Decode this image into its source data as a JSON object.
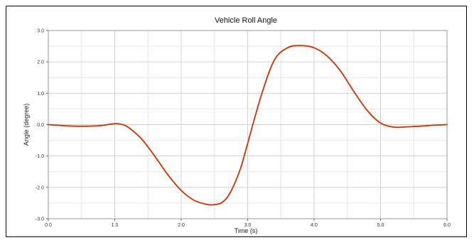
{
  "chart_data": {
    "type": "line",
    "title": "Vehicle Roll Angle",
    "xlabel": "Time (s)",
    "ylabel": "Angle (degree)",
    "xlim": [
      0.0,
      6.0
    ],
    "ylim": [
      -3.0,
      3.0
    ],
    "x_ticks": [
      "0.0",
      "1.0",
      "2.0",
      "3.0",
      "4.0",
      "5.0",
      "6.0"
    ],
    "y_ticks": [
      "-3.0",
      "-2.0",
      "-1.0",
      "0.0",
      "1.0",
      "2.0",
      "3.0"
    ],
    "grid": true,
    "series": [
      {
        "color": "#cc3300",
        "x": [
          0.0,
          0.2,
          0.4,
          0.6,
          0.8,
          1.0,
          1.1,
          1.2,
          1.4,
          1.6,
          1.8,
          2.0,
          2.2,
          2.4,
          2.5,
          2.6,
          2.7,
          2.8,
          2.9,
          3.0,
          3.2,
          3.4,
          3.6,
          3.8,
          4.0,
          4.2,
          4.4,
          4.6,
          4.8,
          5.0,
          5.2,
          5.4,
          5.6,
          5.8,
          6.0
        ],
        "y": [
          0.0,
          -0.03,
          -0.05,
          -0.05,
          -0.03,
          0.03,
          0.01,
          -0.08,
          -0.45,
          -1.0,
          -1.6,
          -2.1,
          -2.42,
          -2.55,
          -2.55,
          -2.5,
          -2.3,
          -1.9,
          -1.35,
          -0.6,
          0.9,
          2.05,
          2.45,
          2.52,
          2.45,
          2.18,
          1.7,
          1.05,
          0.45,
          0.05,
          -0.08,
          -0.07,
          -0.05,
          -0.02,
          0.0
        ]
      }
    ]
  }
}
